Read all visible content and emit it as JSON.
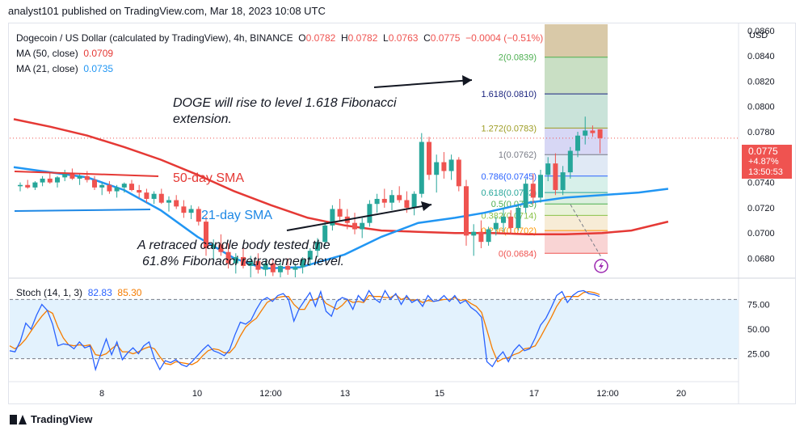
{
  "header": {
    "published": "analyst101 published on TradingView.com, Mar 18, 2023 10:08 UTC"
  },
  "legend": {
    "title": "Dogecoin / US Dollar (calculated by TradingView), 4h, BINANCE",
    "o_label": "O",
    "o": "0.0782",
    "h_label": "H",
    "h": "0.0782",
    "l_label": "L",
    "l": "0.0763",
    "c_label": "C",
    "c": "0.0775",
    "change": "−0.0004 (−0.51%)",
    "ma50_label": "MA (50, close)",
    "ma50_value": "0.0709",
    "ma21_label": "MA (21, close)",
    "ma21_value": "0.0735"
  },
  "annotations": {
    "doge_rise_1": "DOGE will rise to level 1.618 Fibonacci",
    "doge_rise_2": "extension.",
    "sma50": "50-day SMA",
    "sma21": "21-day SMA",
    "retrace_1": "A retraced candle body tested the",
    "retrace_2": "61.8% Fibonacci retracement level."
  },
  "price_box": {
    "price": "0.0775",
    "change": "+4.87%",
    "countdown": "13:50:53"
  },
  "stoch_legend": {
    "label": "Stoch (14, 1, 3)",
    "k": "82.83",
    "d": "85.30"
  },
  "footer": {
    "brand": "TradingView"
  },
  "colors": {
    "up": "#26a69a",
    "down": "#ef5350",
    "ma50": "#e53935",
    "ma21": "#2196f3",
    "stoch_k": "#2962ff",
    "stoch_d": "#f57c00"
  },
  "chart_data": {
    "type": "candlestick",
    "currency": "USD",
    "price_ticks": [
      "0.0680",
      "0.0700",
      "0.0720",
      "0.0740",
      "0.0760",
      "0.0780",
      "0.0800",
      "0.0820",
      "0.0840",
      "0.0860"
    ],
    "price_range": [
      0.0665,
      0.0865
    ],
    "x_ticks": [
      {
        "label": "8",
        "index": 26
      },
      {
        "label": "10",
        "index": 52
      },
      {
        "label": "12:00",
        "index": 78
      },
      {
        "label": "13",
        "index": 104
      },
      {
        "label": "15",
        "index": 130
      },
      {
        "label": "17",
        "index": 156
      },
      {
        "label": "12:00",
        "index": 182
      },
      {
        "label": "20",
        "index": 208
      }
    ],
    "candles": [
      [
        0.0737,
        0.074,
        0.0733,
        0.0738
      ],
      [
        0.0738,
        0.0742,
        0.0735,
        0.0736
      ],
      [
        0.0736,
        0.0741,
        0.0734,
        0.074
      ],
      [
        0.074,
        0.0745,
        0.0737,
        0.0743
      ],
      [
        0.0743,
        0.0748,
        0.0739,
        0.074
      ],
      [
        0.074,
        0.0745,
        0.0736,
        0.0744
      ],
      [
        0.0744,
        0.075,
        0.0741,
        0.0747
      ],
      [
        0.0747,
        0.0751,
        0.0742,
        0.0743
      ],
      [
        0.0743,
        0.0747,
        0.0738,
        0.0745
      ],
      [
        0.0745,
        0.0749,
        0.074,
        0.0742
      ],
      [
        0.0742,
        0.0745,
        0.0734,
        0.0736
      ],
      [
        0.0736,
        0.074,
        0.073,
        0.0738
      ],
      [
        0.0738,
        0.0741,
        0.0731,
        0.0733
      ],
      [
        0.0733,
        0.0738,
        0.0728,
        0.0736
      ],
      [
        0.0736,
        0.074,
        0.0732,
        0.0739
      ],
      [
        0.0739,
        0.0742,
        0.0733,
        0.0734
      ],
      [
        0.0734,
        0.0738,
        0.0728,
        0.0732
      ],
      [
        0.0732,
        0.0735,
        0.0724,
        0.0727
      ],
      [
        0.0727,
        0.0733,
        0.0723,
        0.0731
      ],
      [
        0.0731,
        0.0735,
        0.0723,
        0.0724
      ],
      [
        0.0724,
        0.0729,
        0.0717,
        0.0726
      ],
      [
        0.0726,
        0.073,
        0.0719,
        0.0721
      ],
      [
        0.0721,
        0.0726,
        0.0712,
        0.0716
      ],
      [
        0.0716,
        0.0722,
        0.0711,
        0.0719
      ],
      [
        0.0719,
        0.0721,
        0.0706,
        0.0709
      ],
      [
        0.0709,
        0.0713,
        0.0682,
        0.0688
      ],
      [
        0.0688,
        0.0695,
        0.0678,
        0.0691
      ],
      [
        0.0691,
        0.0699,
        0.0682,
        0.0685
      ],
      [
        0.0685,
        0.0692,
        0.0672,
        0.0676
      ],
      [
        0.0676,
        0.0684,
        0.0668,
        0.0681
      ],
      [
        0.0681,
        0.0688,
        0.0672,
        0.0674
      ],
      [
        0.0674,
        0.0682,
        0.0665,
        0.0678
      ],
      [
        0.0678,
        0.0684,
        0.0668,
        0.0671
      ],
      [
        0.0671,
        0.0679,
        0.0666,
        0.0676
      ],
      [
        0.0676,
        0.068,
        0.0666,
        0.0669
      ],
      [
        0.0669,
        0.0677,
        0.0665,
        0.0674
      ],
      [
        0.0674,
        0.068,
        0.0667,
        0.0671
      ],
      [
        0.0671,
        0.0676,
        0.0665,
        0.0673
      ],
      [
        0.0673,
        0.0681,
        0.0668,
        0.0679
      ],
      [
        0.0679,
        0.0688,
        0.0674,
        0.0686
      ],
      [
        0.0686,
        0.0696,
        0.0681,
        0.0693
      ],
      [
        0.0693,
        0.0709,
        0.0689,
        0.0706
      ],
      [
        0.0706,
        0.0722,
        0.0702,
        0.0719
      ],
      [
        0.0719,
        0.0727,
        0.0709,
        0.0713
      ],
      [
        0.0713,
        0.0719,
        0.0703,
        0.0708
      ],
      [
        0.0708,
        0.0716,
        0.0699,
        0.0703
      ],
      [
        0.0703,
        0.0712,
        0.0696,
        0.0708
      ],
      [
        0.0708,
        0.0726,
        0.0705,
        0.0723
      ],
      [
        0.0723,
        0.0731,
        0.0716,
        0.0727
      ],
      [
        0.0727,
        0.0735,
        0.072,
        0.0724
      ],
      [
        0.0724,
        0.0734,
        0.0718,
        0.073
      ],
      [
        0.073,
        0.0737,
        0.0724,
        0.0726
      ],
      [
        0.0726,
        0.0733,
        0.0716,
        0.072
      ],
      [
        0.072,
        0.0733,
        0.0714,
        0.0731
      ],
      [
        0.0731,
        0.0779,
        0.0728,
        0.0772
      ],
      [
        0.0772,
        0.0776,
        0.0742,
        0.0746
      ],
      [
        0.0746,
        0.0762,
        0.0732,
        0.0756
      ],
      [
        0.0756,
        0.0764,
        0.0743,
        0.0749
      ],
      [
        0.0749,
        0.0762,
        0.0742,
        0.0758
      ],
      [
        0.0758,
        0.076,
        0.0733,
        0.0737
      ],
      [
        0.0737,
        0.0742,
        0.069,
        0.0698
      ],
      [
        0.0698,
        0.0707,
        0.0682,
        0.0701
      ],
      [
        0.0701,
        0.071,
        0.0688,
        0.0693
      ],
      [
        0.0693,
        0.0705,
        0.069,
        0.0703
      ],
      [
        0.0703,
        0.0713,
        0.0698,
        0.0708
      ],
      [
        0.0708,
        0.072,
        0.0701,
        0.0713
      ],
      [
        0.0713,
        0.0718,
        0.0699,
        0.0704
      ],
      [
        0.0704,
        0.0723,
        0.0702,
        0.072
      ],
      [
        0.072,
        0.0743,
        0.0716,
        0.0739
      ],
      [
        0.0739,
        0.0747,
        0.0723,
        0.0728
      ],
      [
        0.0728,
        0.075,
        0.0724,
        0.0746
      ],
      [
        0.0746,
        0.076,
        0.0741,
        0.0755
      ],
      [
        0.0755,
        0.0763,
        0.073,
        0.0734
      ],
      [
        0.0734,
        0.0753,
        0.073,
        0.0748
      ],
      [
        0.0748,
        0.0768,
        0.0743,
        0.0765
      ],
      [
        0.0765,
        0.078,
        0.076,
        0.0777
      ],
      [
        0.0777,
        0.0792,
        0.077,
        0.0781
      ],
      [
        0.0781,
        0.0785,
        0.0776,
        0.0779
      ],
      [
        0.0782,
        0.0782,
        0.0763,
        0.0775
      ]
    ],
    "fibonacci": [
      {
        "label": "2(0.0839)",
        "price": 0.0839
      },
      {
        "label": "1.618(0.0810)",
        "price": 0.081
      },
      {
        "label": "1.272(0.0783)",
        "price": 0.0783
      },
      {
        "label": "1(0.0762)",
        "price": 0.0762
      },
      {
        "label": "0.786(0.0745)",
        "price": 0.0745
      },
      {
        "label": "0.618(0.0732)",
        "price": 0.0732
      },
      {
        "label": "0.5(0.0723)",
        "price": 0.0723
      },
      {
        "label": "0.382(0.0714)",
        "price": 0.0714
      },
      {
        "label": "0.236(0.0702)",
        "price": 0.0702
      },
      {
        "label": "0(0.0684)",
        "price": 0.0684
      }
    ],
    "stoch_ticks": [
      "25.00",
      "50.00",
      "75.00"
    ],
    "stoch_range": [
      0,
      100
    ],
    "stoch_bands": [
      20,
      80
    ],
    "stoch_k": [
      28,
      27,
      38,
      56,
      50,
      64,
      75,
      69,
      55,
      33,
      35,
      34,
      30,
      37,
      31,
      33,
      9,
      25,
      40,
      24,
      37,
      19,
      26,
      31,
      25,
      33,
      37,
      20,
      9,
      18,
      16,
      19,
      14,
      12,
      17,
      23,
      29,
      34,
      28,
      26,
      23,
      29,
      44,
      57,
      55,
      59,
      70,
      79,
      82,
      78,
      84,
      86,
      80,
      58,
      71,
      79,
      87,
      73,
      88,
      68,
      63,
      78,
      82,
      80,
      70,
      84,
      78,
      89,
      81,
      77,
      89,
      80,
      86,
      75,
      84,
      77,
      80,
      73,
      84,
      78,
      79,
      84,
      78,
      84,
      76,
      79,
      72,
      68,
      62,
      17,
      12,
      21,
      27,
      17,
      28,
      34,
      28,
      30,
      41,
      54,
      61,
      72,
      84,
      88,
      77,
      84,
      88,
      89,
      86,
      85,
      83
    ],
    "stoch_d": [
      33,
      30,
      34,
      40,
      48,
      56,
      63,
      69,
      66,
      52,
      41,
      34,
      33,
      34,
      33,
      34,
      24,
      23,
      25,
      30,
      34,
      27,
      27,
      25,
      27,
      30,
      32,
      30,
      22,
      15,
      14,
      17,
      16,
      15,
      14,
      17,
      23,
      28,
      30,
      29,
      26,
      26,
      32,
      43,
      52,
      57,
      61,
      69,
      77,
      80,
      82,
      83,
      83,
      75,
      70,
      70,
      79,
      80,
      83,
      76,
      73,
      70,
      74,
      80,
      77,
      78,
      77,
      84,
      83,
      83,
      82,
      82,
      85,
      80,
      82,
      79,
      80,
      77,
      79,
      78,
      79,
      80,
      80,
      82,
      79,
      80,
      76,
      73,
      67,
      49,
      30,
      17,
      20,
      21,
      24,
      26,
      30,
      31,
      33,
      42,
      52,
      62,
      73,
      81,
      83,
      83,
      83,
      87,
      88,
      87,
      85
    ],
    "ma21_points": [
      [
        0,
        0.0752
      ],
      [
        10,
        0.0748
      ],
      [
        20,
        0.0744
      ],
      [
        30,
        0.0734
      ],
      [
        40,
        0.0718
      ],
      [
        50,
        0.0697
      ],
      [
        60,
        0.068
      ],
      [
        68,
        0.0672
      ],
      [
        78,
        0.0673
      ],
      [
        90,
        0.0683
      ],
      [
        100,
        0.0697
      ],
      [
        110,
        0.0708
      ],
      [
        120,
        0.0712
      ],
      [
        128,
        0.0716
      ],
      [
        140,
        0.0724
      ],
      [
        150,
        0.0728
      ],
      [
        160,
        0.073
      ],
      [
        170,
        0.0732
      ],
      [
        178,
        0.0735
      ]
    ],
    "ma50_points": [
      [
        0,
        0.079
      ],
      [
        10,
        0.0784
      ],
      [
        20,
        0.0777
      ],
      [
        30,
        0.0768
      ],
      [
        40,
        0.0758
      ],
      [
        50,
        0.0746
      ],
      [
        60,
        0.0733
      ],
      [
        70,
        0.0722
      ],
      [
        80,
        0.0712
      ],
      [
        90,
        0.0706
      ],
      [
        100,
        0.0702
      ],
      [
        110,
        0.0701
      ],
      [
        120,
        0.07
      ],
      [
        130,
        0.07
      ],
      [
        140,
        0.0699
      ],
      [
        150,
        0.0699
      ],
      [
        160,
        0.07
      ],
      [
        168,
        0.0702
      ],
      [
        178,
        0.0709
      ]
    ],
    "stoch_index_scale": 1.8
  }
}
